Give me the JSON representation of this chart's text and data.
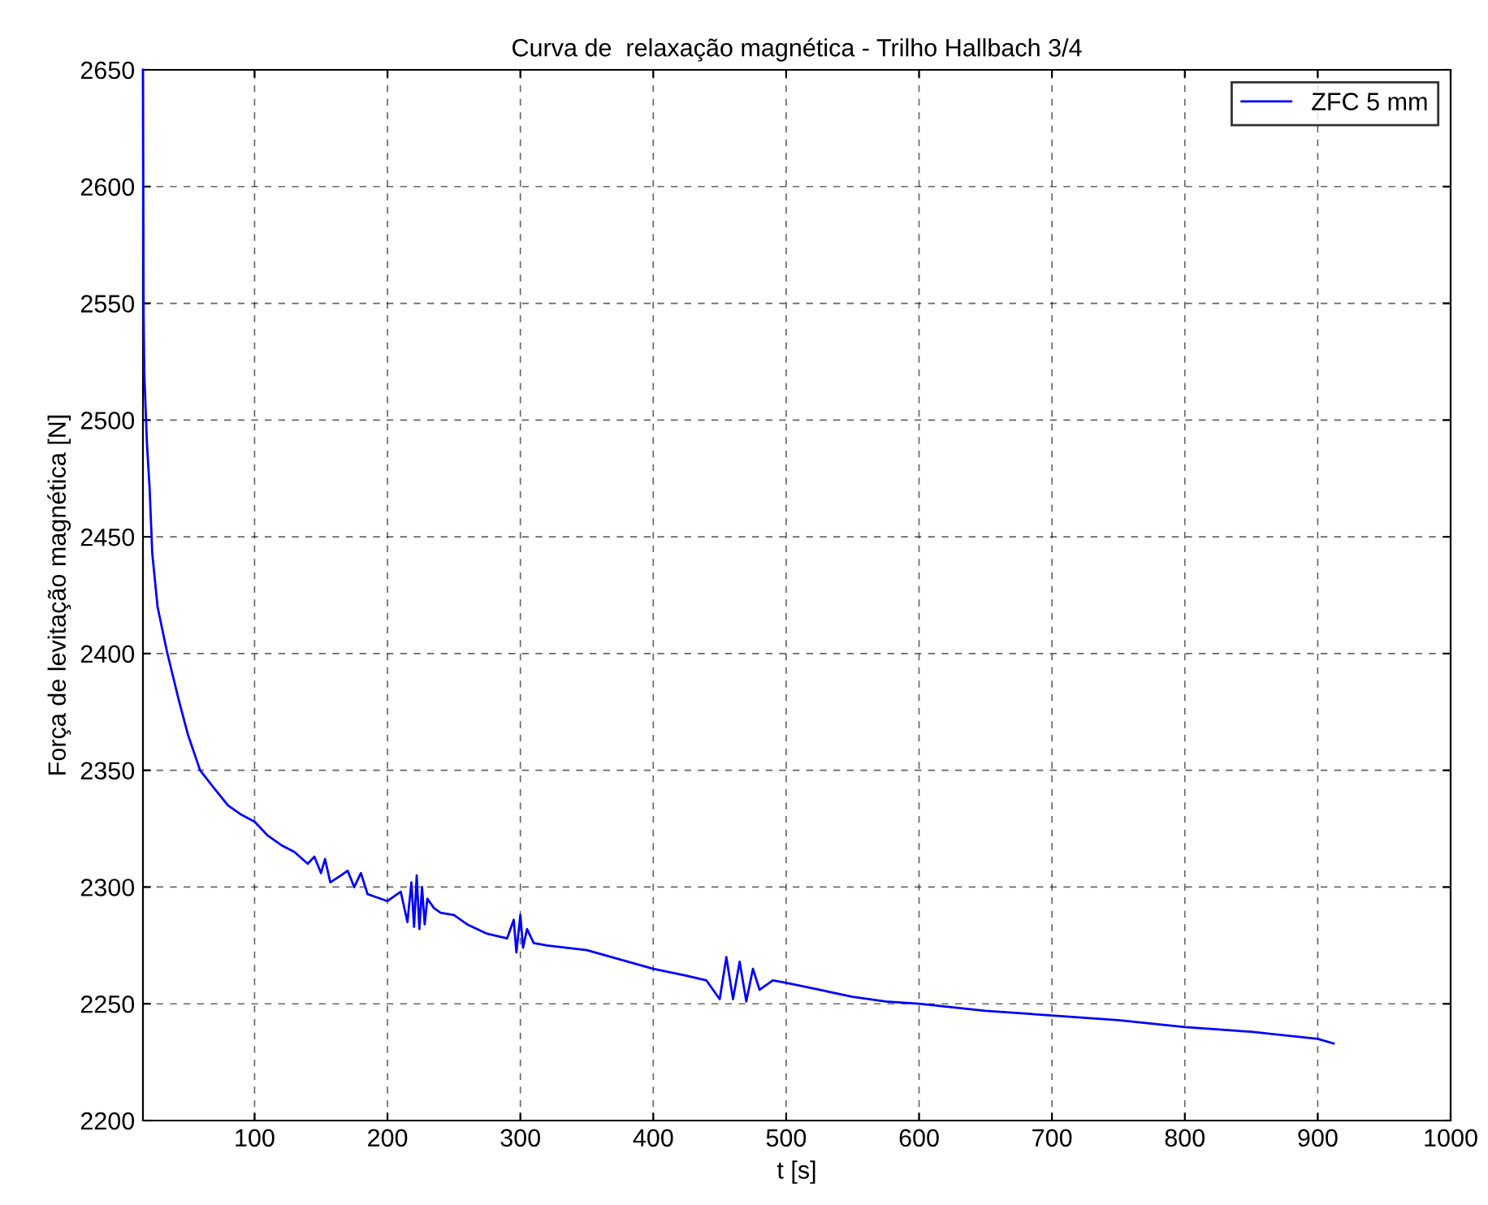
{
  "chart_data": {
    "type": "line",
    "title": "Curva de  relaxação magnética - Trilho Hallbach 3/4",
    "xlabel": "t [s]",
    "ylabel": "Força de levitação magnética [N]",
    "series": [
      {
        "name": "ZFC 5 mm",
        "color": "#0000ff",
        "x": [
          16,
          16.5,
          17,
          18,
          19,
          21,
          23,
          27,
          34,
          43,
          50,
          59,
          70,
          80,
          90,
          100,
          110,
          120,
          130,
          140,
          145,
          150,
          153,
          157,
          165,
          170,
          175,
          180,
          185,
          190,
          200,
          210,
          215,
          218,
          220,
          222,
          224,
          226,
          228,
          230,
          235,
          240,
          250,
          260,
          275,
          290,
          295,
          297,
          300,
          302,
          305,
          310,
          320,
          350,
          375,
          400,
          425,
          440,
          450,
          455,
          460,
          465,
          470,
          475,
          480,
          490,
          500,
          525,
          550,
          575,
          600,
          650,
          700,
          750,
          800,
          850,
          900,
          912
        ],
        "values": [
          2650,
          2545,
          2520,
          2505,
          2490,
          2471,
          2443,
          2420,
          2401,
          2380,
          2365,
          2350,
          2342,
          2335,
          2331,
          2328,
          2322,
          2318,
          2315,
          2310,
          2313,
          2306,
          2312,
          2302,
          2305,
          2307,
          2300,
          2306,
          2297,
          2296,
          2294,
          2298,
          2285,
          2302,
          2283,
          2305,
          2282,
          2300,
          2284,
          2295,
          2291,
          2289,
          2288,
          2284,
          2280,
          2278,
          2286,
          2272,
          2288,
          2274,
          2282,
          2276,
          2275,
          2273,
          2269,
          2265,
          2262,
          2260,
          2252,
          2270,
          2252,
          2268,
          2251,
          2265,
          2256,
          2260,
          2259,
          2256,
          2253,
          2251,
          2250,
          2247,
          2245,
          2243,
          2240,
          2238,
          2235,
          2233
        ]
      }
    ],
    "xlim": [
      16,
      1000
    ],
    "xticks": [
      100,
      200,
      300,
      400,
      500,
      600,
      700,
      800,
      900,
      1000
    ],
    "ylim": [
      2200,
      2650
    ],
    "yticks": [
      2200,
      2250,
      2300,
      2350,
      2400,
      2450,
      2500,
      2550,
      2600,
      2650
    ],
    "grid": true,
    "legend": "top right",
    "line_style": "solid",
    "marker": "none"
  }
}
